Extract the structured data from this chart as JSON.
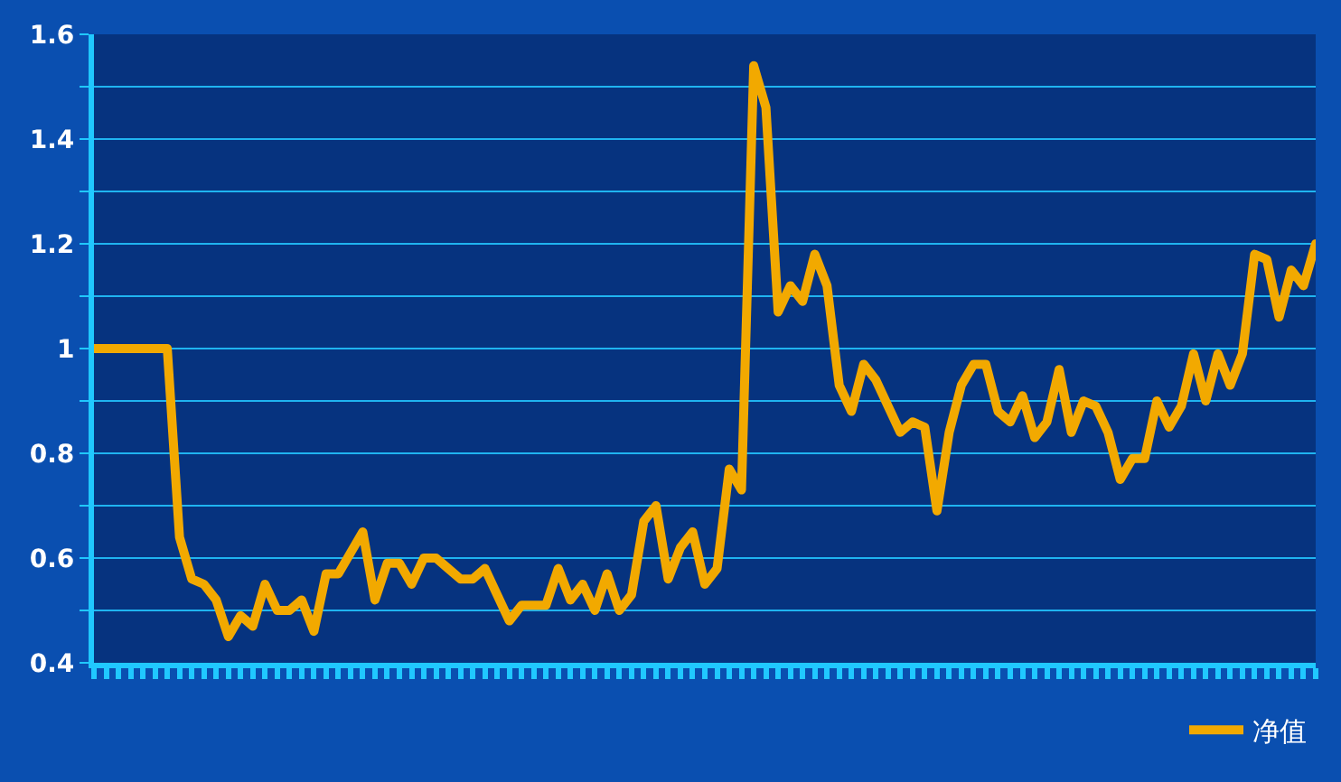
{
  "chart_data": {
    "type": "line",
    "categories": [
      null,
      null,
      null,
      null,
      null,
      null,
      null,
      null,
      null,
      null,
      null,
      null,
      null,
      null,
      null,
      null,
      null,
      null,
      null,
      null,
      null,
      null,
      null,
      null,
      null,
      null,
      null,
      null,
      null,
      null,
      null,
      null,
      null,
      null,
      null,
      null,
      null,
      null,
      null,
      null,
      null,
      null,
      null,
      null,
      null,
      null,
      null,
      null,
      null,
      null,
      null,
      null,
      null,
      null,
      null,
      null,
      null,
      null,
      null,
      null,
      null,
      null,
      null,
      null,
      null,
      null,
      null,
      null,
      null,
      null,
      null,
      null,
      null,
      null,
      null,
      null,
      null,
      null,
      null,
      null,
      null,
      null,
      null,
      null,
      null,
      null,
      null,
      null,
      null,
      null,
      null,
      null,
      null,
      null,
      null,
      null,
      null,
      null,
      null,
      null,
      null
    ],
    "series": [
      {
        "name": "净值",
        "color": "#f2a900",
        "values": [
          1.0,
          1.0,
          1.0,
          1.0,
          1.0,
          1.0,
          1.0,
          0.64,
          0.56,
          0.55,
          0.52,
          0.45,
          0.49,
          0.47,
          0.55,
          0.5,
          0.5,
          0.52,
          0.46,
          0.57,
          0.57,
          0.61,
          0.65,
          0.52,
          0.59,
          0.59,
          0.55,
          0.6,
          0.6,
          0.58,
          0.56,
          0.56,
          0.58,
          0.53,
          0.48,
          0.51,
          0.51,
          0.51,
          0.58,
          0.52,
          0.55,
          0.5,
          0.57,
          0.5,
          0.53,
          0.67,
          0.7,
          0.56,
          0.62,
          0.65,
          0.55,
          0.58,
          0.77,
          0.73,
          1.54,
          1.46,
          1.07,
          1.12,
          1.09,
          1.18,
          1.12,
          0.93,
          0.88,
          0.97,
          0.94,
          0.89,
          0.84,
          0.86,
          0.85,
          0.69,
          0.84,
          0.93,
          0.97,
          0.97,
          0.88,
          0.86,
          0.91,
          0.83,
          0.86,
          0.96,
          0.84,
          0.9,
          0.89,
          0.84,
          0.75,
          0.79,
          0.79,
          0.9,
          0.85,
          0.89,
          0.99,
          0.9,
          0.99,
          0.93,
          0.99,
          1.18,
          1.17,
          1.06,
          1.15,
          1.12,
          1.2
        ]
      }
    ],
    "ylim": [
      0.4,
      1.6
    ],
    "yticks": [
      {
        "value": 0.4,
        "label": "0.4"
      },
      {
        "value": 0.5,
        "label": null
      },
      {
        "value": 0.6,
        "label": "0.6"
      },
      {
        "value": 0.7,
        "label": null
      },
      {
        "value": 0.8,
        "label": "0.8"
      },
      {
        "value": 0.9,
        "label": null
      },
      {
        "value": 1.0,
        "label": "1"
      },
      {
        "value": 1.1,
        "label": null
      },
      {
        "value": 1.2,
        "label": "1.2"
      },
      {
        "value": 1.3,
        "label": null
      },
      {
        "value": 1.4,
        "label": "1.4"
      },
      {
        "value": 1.5,
        "label": null
      },
      {
        "value": 1.6,
        "label": "1.6"
      }
    ],
    "grid": "y",
    "legend": "bottom right",
    "tick_labels": "y",
    "marker": "none",
    "line_style": "solid"
  }
}
